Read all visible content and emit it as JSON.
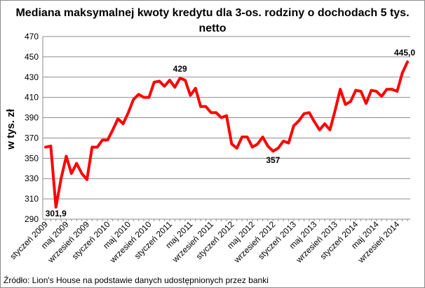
{
  "chart_data": {
    "type": "line",
    "title_line1": "Mediana maksymalnej kwoty kredytu dla 3-os. rodziny o dochodach 5 tys.",
    "title_line2": "netto",
    "ylabel": "w tys. zł",
    "ylim": [
      290,
      470
    ],
    "yticks": [
      290,
      310,
      330,
      350,
      370,
      390,
      410,
      430,
      450,
      470
    ],
    "grid": true,
    "legend": "none",
    "x_tick_labels": [
      {
        "index": 0,
        "label": "styczeń 2009"
      },
      {
        "index": 4,
        "label": "maj 2009"
      },
      {
        "index": 8,
        "label": "wrzesień 2009"
      },
      {
        "index": 12,
        "label": "styczeń 2010"
      },
      {
        "index": 16,
        "label": "maj 2010"
      },
      {
        "index": 20,
        "label": "wrzesień 2010"
      },
      {
        "index": 24,
        "label": "styczeń 2011"
      },
      {
        "index": 28,
        "label": "maj 2011"
      },
      {
        "index": 32,
        "label": "wrzesień 2011"
      },
      {
        "index": 36,
        "label": "styczeń 2012"
      },
      {
        "index": 40,
        "label": "maj 2012"
      },
      {
        "index": 44,
        "label": "wrzesień 2012"
      },
      {
        "index": 48,
        "label": "styczeń 2013"
      },
      {
        "index": 52,
        "label": "maj 2013"
      },
      {
        "index": 56,
        "label": "wrzesień 2013"
      },
      {
        "index": 60,
        "label": "styczeń 2014"
      },
      {
        "index": 64,
        "label": "maj 2014"
      },
      {
        "index": 68,
        "label": "wrzesień 2014"
      }
    ],
    "series": [
      {
        "color": "#ff0000",
        "values": [
          361,
          362,
          301.9,
          330,
          352,
          335,
          345,
          335,
          329,
          361,
          361,
          368,
          368,
          378,
          389,
          384,
          395,
          408,
          413,
          410,
          410,
          425,
          426,
          421,
          427,
          420,
          429,
          427,
          412,
          419,
          401,
          401,
          395,
          395,
          390,
          392,
          364,
          360,
          371,
          371,
          361,
          364,
          371,
          362,
          357,
          360,
          367,
          365,
          382,
          387,
          394,
          395,
          386,
          378,
          384,
          378,
          397,
          418,
          403,
          406,
          417,
          416,
          404,
          417,
          416,
          411,
          418,
          418,
          416,
          434,
          445
        ]
      }
    ],
    "annotations": [
      {
        "index": 2,
        "label": "301,9"
      },
      {
        "index": 26,
        "label": "429"
      },
      {
        "index": 44,
        "label": "357"
      },
      {
        "index": 70,
        "label": "445,0"
      }
    ]
  },
  "source": "Źródło:  Lion's House na podstawie danych udostępnionych przez banki",
  "colors": {
    "gridline": "#8c8c8c",
    "axis": "#8c8c8c",
    "line": "#ff0000"
  }
}
